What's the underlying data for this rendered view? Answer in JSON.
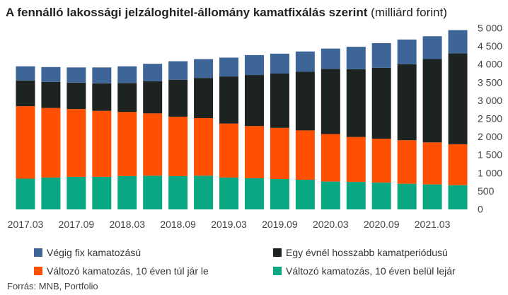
{
  "title": {
    "main": "A fennálló lakossági jelzáloghitel-állomány kamatfixálás szerint",
    "unit": "(milliárd forint)"
  },
  "source": "Forrás: MNB, Portfolio",
  "colors": {
    "blue": "#3d6597",
    "black": "#1d2321",
    "orange": "#ff4f00",
    "green": "#0aa882"
  },
  "chart_data": {
    "type": "bar",
    "stacked": true,
    "categories": [
      "2017.03",
      "2017.06",
      "2017.09",
      "2017.12",
      "2018.03",
      "2018.06",
      "2018.09",
      "2018.12",
      "2019.03",
      "2019.06",
      "2019.09",
      "2019.12",
      "2020.03",
      "2020.06",
      "2020.09",
      "2020.12",
      "2021.03",
      "2021.06"
    ],
    "x_tick_labels": [
      "2017.03",
      "2017.09",
      "2018.03",
      "2018.09",
      "2019.03",
      "2019.09",
      "2020.03",
      "2020.09",
      "2021.03"
    ],
    "ylim": [
      0,
      5000
    ],
    "y_ticks": [
      "0",
      "500",
      "1 000",
      "1 500",
      "2 000",
      "2 500",
      "3 000",
      "3 500",
      "4 000",
      "4 500",
      "5 000"
    ],
    "y_axis_position": "right",
    "grid": false,
    "legend_position": "bottom",
    "series": [
      {
        "name": "Változó kamatozás, 10 éven belül lejár",
        "color": "#0aa882",
        "values": [
          850,
          880,
          900,
          900,
          920,
          930,
          920,
          930,
          880,
          860,
          840,
          820,
          770,
          760,
          740,
          710,
          690,
          670
        ]
      },
      {
        "name": "Változó kamatozás, 10 éven túl jár le",
        "color": "#ff4f00",
        "values": [
          2000,
          1920,
          1870,
          1820,
          1770,
          1720,
          1640,
          1590,
          1490,
          1440,
          1410,
          1360,
          1310,
          1240,
          1210,
          1200,
          1160,
          1130
        ]
      },
      {
        "name": "Egy évnél hosszabb kamatperiódusú",
        "color": "#1d2321",
        "values": [
          710,
          720,
          730,
          760,
          800,
          890,
          1020,
          1110,
          1300,
          1410,
          1500,
          1620,
          1800,
          1870,
          1960,
          2100,
          2300,
          2510
        ]
      },
      {
        "name": "Végig fix kamatozású",
        "color": "#3d6597",
        "values": [
          390,
          410,
          420,
          440,
          460,
          480,
          510,
          520,
          520,
          550,
          550,
          560,
          560,
          620,
          680,
          680,
          630,
          640
        ]
      }
    ]
  },
  "legend": [
    {
      "label": "Végig fix kamatozású",
      "color": "#3d6597"
    },
    {
      "label": "Egy évnél hosszabb kamatperiódusú",
      "color": "#1d2321"
    },
    {
      "label": "Változó kamatozás, 10 éven túl jár le",
      "color": "#ff4f00"
    },
    {
      "label": "Változó kamatozás, 10 éven belül lejár",
      "color": "#0aa882"
    }
  ]
}
